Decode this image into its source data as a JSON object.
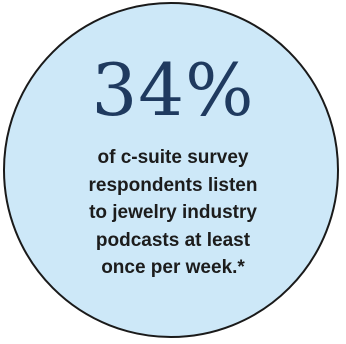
{
  "stat": {
    "value": "34%",
    "caption_lines": [
      "of c-suite survey",
      "respondents listen",
      "to jewelry industry",
      "podcasts at least",
      "once per week.*"
    ]
  },
  "colors": {
    "circle_fill": "#cde8f8",
    "circle_border": "#1a1a1a",
    "value_text": "#1f3a5f",
    "caption_text": "#1c1c1c"
  }
}
